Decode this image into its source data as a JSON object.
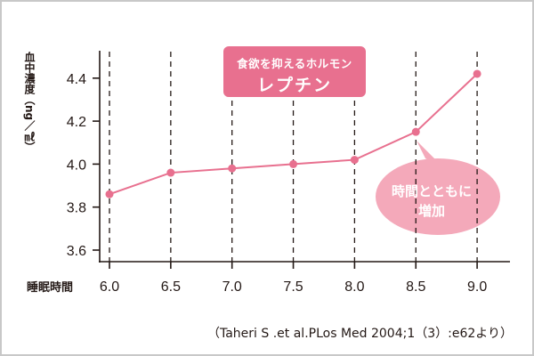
{
  "chart_data": {
    "type": "line",
    "title": "",
    "xlabel": "睡眠時間",
    "ylabel": "血中濃度（ng／㎖）",
    "x": [
      6.0,
      6.5,
      7.0,
      7.5,
      8.0,
      8.5,
      9.0
    ],
    "x_tick_labels": [
      "6.0",
      "6.5",
      "7.0",
      "7.5",
      "8.0",
      "8.5",
      "9.0"
    ],
    "y_tick_labels": [
      "3.6",
      "3.8",
      "4.0",
      "4.2",
      "4.4"
    ],
    "ylim": [
      3.55,
      4.5
    ],
    "series": [
      {
        "name": "レプチン",
        "values": [
          3.86,
          3.96,
          3.98,
          4.0,
          4.02,
          4.15,
          4.42
        ],
        "color": "#e8708f"
      }
    ],
    "grid": "vertical dashed lines at each x tick",
    "annotations": [
      {
        "text": "食欲を抑えるホルモン レプチン",
        "type": "label-box"
      },
      {
        "text": "時間とともに 増加",
        "type": "speech-bubble"
      }
    ]
  },
  "labels": {
    "ylabel": "血中濃度（ng／㎖）",
    "xlabel": "睡眠時間",
    "badge_sub": "食欲を抑えるホルモン",
    "badge_main": "レプチン",
    "bubble_line1": "時間とともに",
    "bubble_line2": "増加",
    "citation": "（Taheri S .et al.PLos Med 2004;1（3）:e62より）"
  },
  "colors": {
    "series": "#e8708f",
    "bubble": "#f4a9ba",
    "axis": "#231815",
    "border": "#c8c8c8"
  }
}
